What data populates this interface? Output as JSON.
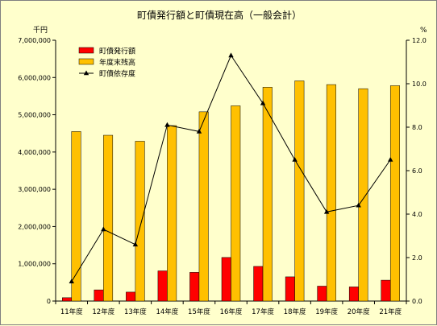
{
  "chart_data": {
    "type": "bar+line",
    "title": "町債発行額と町債現在高（一般会計）",
    "left_axis_unit": "千円",
    "right_axis_unit": "%",
    "categories": [
      "11年度",
      "12年度",
      "13年度",
      "14年度",
      "15年度",
      "16年度",
      "17年度",
      "18年度",
      "19年度",
      "20年度",
      "21年度"
    ],
    "left_axis": {
      "min": 0,
      "max": 7000000,
      "ticks": [
        0,
        1000000,
        2000000,
        3000000,
        4000000,
        5000000,
        6000000,
        7000000
      ],
      "tick_labels": [
        "0",
        "1,000,000",
        "2,000,000",
        "3,000,000",
        "4,000,000",
        "5,000,000",
        "6,000,000",
        "7,000,000"
      ]
    },
    "right_axis": {
      "min": 0,
      "max": 12,
      "ticks": [
        0,
        2,
        4,
        6,
        8,
        10,
        12
      ],
      "tick_labels": [
        "0.0",
        "2.0",
        "4.0",
        "6.0",
        "8.0",
        "10.0",
        "12.0"
      ]
    },
    "series": [
      {
        "name": "町債発行額",
        "kind": "bar",
        "axis": "left",
        "color": "#ff0000",
        "values": [
          90000,
          300000,
          240000,
          810000,
          770000,
          1170000,
          930000,
          650000,
          400000,
          380000,
          560000
        ]
      },
      {
        "name": "年度末残高",
        "kind": "bar",
        "axis": "left",
        "color": "#ffc000",
        "values": [
          4550000,
          4450000,
          4290000,
          4710000,
          5080000,
          5240000,
          5740000,
          5910000,
          5810000,
          5700000,
          5780000
        ]
      },
      {
        "name": "町債依存度",
        "kind": "line",
        "axis": "right",
        "color": "#000000",
        "values": [
          0.9,
          3.3,
          2.6,
          8.1,
          7.8,
          11.3,
          9.1,
          6.5,
          4.1,
          4.4,
          6.5
        ]
      }
    ],
    "legend_position": "top-left inside plot",
    "grid": false
  }
}
